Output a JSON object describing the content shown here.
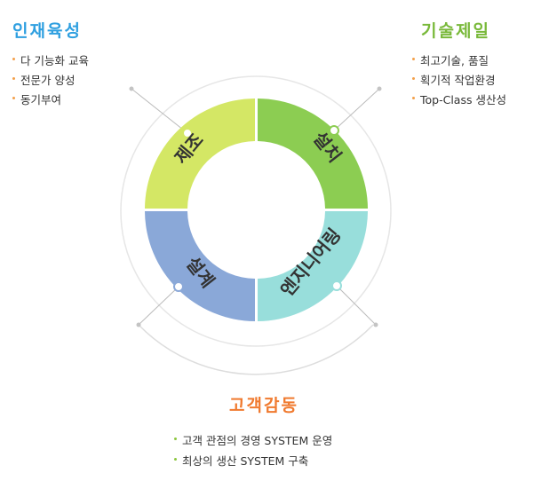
{
  "sections": {
    "talent": {
      "title": "인재육성",
      "color": "#2e9fe0",
      "items": [
        "다 기능화 교육",
        "전문가 양성",
        "동기부여"
      ]
    },
    "tech": {
      "title": "기술제일",
      "color": "#79b93a",
      "items": [
        "최고기술, 품질",
        "획기적 작업환경",
        "Top-Class 생산성"
      ]
    },
    "customer": {
      "title": "고객감동",
      "color": "#f07a2f",
      "items": [
        "고객 관점의 경영 SYSTEM 운영",
        "최상의 생산 SYSTEM 구축"
      ]
    }
  },
  "segments": {
    "manufacturing": {
      "label": "제조",
      "color": "#d4e765"
    },
    "installation": {
      "label": "설치",
      "color": "#8ccd52"
    },
    "design": {
      "label": "설계",
      "color": "#8aa8d8"
    },
    "engineering": {
      "label": "엔지니어링",
      "color": "#98dedb"
    }
  },
  "bullet_colors": {
    "talent": "#f3a04a",
    "tech": "#f3a04a",
    "customer": "#8cc63f"
  }
}
